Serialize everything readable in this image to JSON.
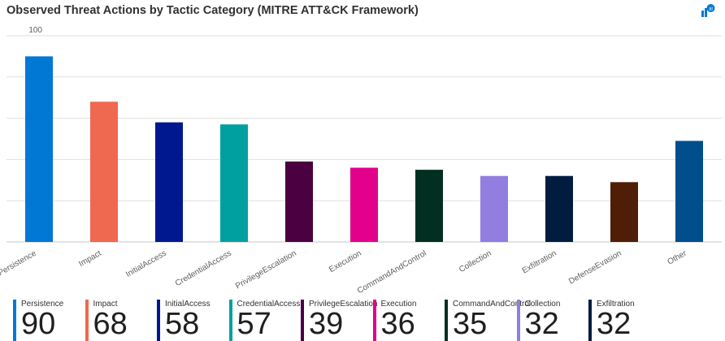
{
  "header": {
    "title": "Observed Threat Actions by Tactic Category (MITRE ATT&CK Framework)",
    "icon": "insights-icon"
  },
  "chart_data": {
    "type": "bar",
    "title": "Observed Threat Actions by Tactic Category (MITRE ATT&CK Framework)",
    "xlabel": "",
    "ylabel": "",
    "ylim": [
      0,
      100
    ],
    "yticks": [
      0,
      20,
      40,
      60,
      80,
      100
    ],
    "grid": true,
    "categories": [
      "Persistence",
      "Impact",
      "InitialAccess",
      "CredentialAccess",
      "PrivilegeEscalation",
      "Execution",
      "CommandAndControl",
      "Collection",
      "Exfiltration",
      "DefenseEvasion",
      "Other"
    ],
    "values": [
      90,
      68,
      58,
      57,
      39,
      36,
      35,
      32,
      32,
      29,
      49
    ],
    "colors": [
      "#0078D4",
      "#EF6950",
      "#00188F",
      "#00A0A0",
      "#4A0041",
      "#E3008C",
      "#022F22",
      "#917EDF",
      "#001D3F",
      "#4E1F06",
      "#004E8C"
    ]
  },
  "tiles": [
    {
      "label": "Persistence",
      "value": "90",
      "color": "#0078D4"
    },
    {
      "label": "Impact",
      "value": "68",
      "color": "#EF6950"
    },
    {
      "label": "InitialAccess",
      "value": "58",
      "color": "#00188F"
    },
    {
      "label": "CredentialAccess",
      "value": "57",
      "color": "#00A0A0"
    },
    {
      "label": "PrivilegeEscalation",
      "value": "39",
      "color": "#4A0041"
    },
    {
      "label": "Execution",
      "value": "36",
      "color": "#E3008C"
    },
    {
      "label": "CommandAndControl",
      "value": "35",
      "color": "#022F22"
    },
    {
      "label": "Collection",
      "value": "32",
      "color": "#917EDF"
    },
    {
      "label": "Exfiltration",
      "value": "32",
      "color": "#001D3F"
    }
  ]
}
